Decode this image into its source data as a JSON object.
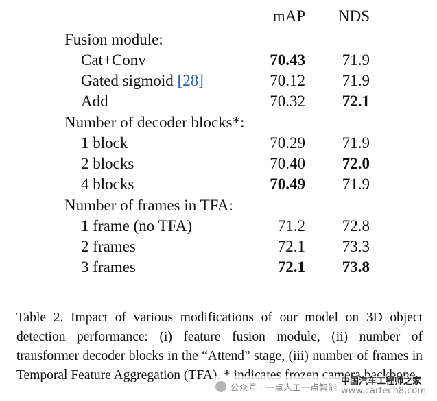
{
  "table": {
    "headers": [
      "",
      "mAP",
      "NDS"
    ],
    "sections": [
      {
        "title": "Fusion module:",
        "rows": [
          {
            "label": "Cat+Conv",
            "map": "70.43",
            "nds": "71.9",
            "map_bold": true,
            "nds_bold": false
          },
          {
            "label": "Gated sigmoid ",
            "ref": "[28]",
            "map": "70.12",
            "nds": "71.9",
            "map_bold": false,
            "nds_bold": false
          },
          {
            "label": "Add",
            "map": "70.32",
            "nds": "72.1",
            "map_bold": false,
            "nds_bold": true
          }
        ]
      },
      {
        "title": "Number of decoder blocks*:",
        "rows": [
          {
            "label": "1 block",
            "map": "70.29",
            "nds": "71.9",
            "map_bold": false,
            "nds_bold": false
          },
          {
            "label": "2 blocks",
            "map": "70.40",
            "nds": "72.0",
            "map_bold": false,
            "nds_bold": true
          },
          {
            "label": "4 blocks",
            "map": "70.49",
            "nds": "71.9",
            "map_bold": true,
            "nds_bold": false
          }
        ]
      },
      {
        "title": "Number of frames in TFA:",
        "rows": [
          {
            "label": "1 frame (no TFA)",
            "map": "71.2",
            "nds": "72.8",
            "map_bold": false,
            "nds_bold": false
          },
          {
            "label": "2 frames",
            "map": "72.1",
            "nds": "73.3",
            "map_bold": false,
            "nds_bold": false
          },
          {
            "label": "3 frames",
            "map": "72.1",
            "nds": "73.8",
            "map_bold": true,
            "nds_bold": true
          }
        ]
      }
    ]
  },
  "caption": "Table 2. Impact of various modifications of our model on 3D object detection performance: (i) feature fusion module, (ii) number of transformer decoder blocks in the “Attend” stage, (iii) number of frames in Temporal Feature Aggregation (TFA). * indicates frozen camera backbone.",
  "watermark": {
    "left": "公众号 · 一点人工一点智能",
    "brand": "中国汽车工程师之家",
    "url": "www.cartech8.com"
  },
  "colors": {
    "ref_link": "#2a63b4",
    "text": "#111111"
  }
}
